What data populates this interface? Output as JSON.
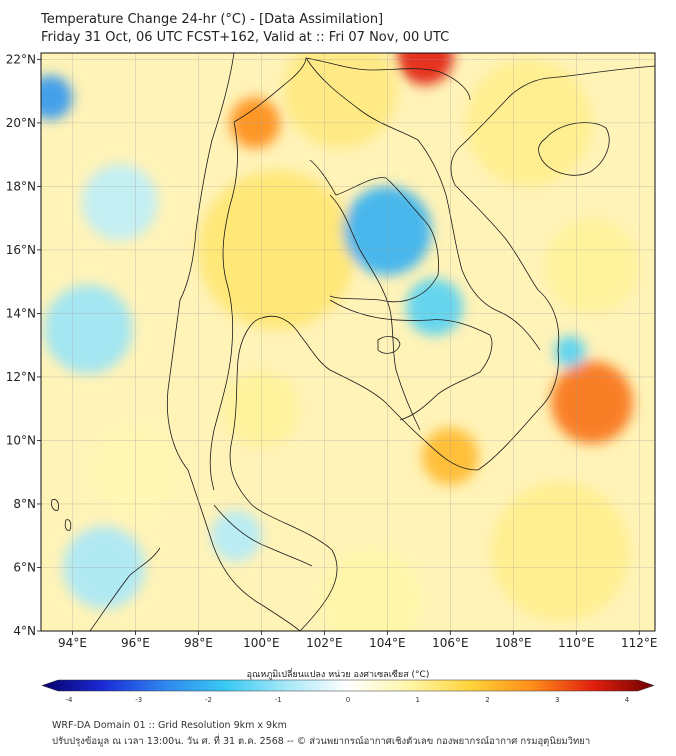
{
  "header": {
    "title": "Temperature Change 24-hr (°C) - [Data Assimilation]",
    "subtitle": "Friday 31 Oct, 06 UTC FCST+162, Valid at :: Fri 07 Nov, 00 UTC"
  },
  "map": {
    "lon_range": [
      93,
      112.5
    ],
    "lat_range": [
      4,
      22.2
    ],
    "lon_ticks": [
      {
        "value": 94,
        "label": "94°E"
      },
      {
        "value": 96,
        "label": "96°E"
      },
      {
        "value": 98,
        "label": "98°E"
      },
      {
        "value": 100,
        "label": "100°E"
      },
      {
        "value": 102,
        "label": "102°E"
      },
      {
        "value": 104,
        "label": "104°E"
      },
      {
        "value": 106,
        "label": "106°E"
      },
      {
        "value": 108,
        "label": "108°E"
      },
      {
        "value": 110,
        "label": "110°E"
      },
      {
        "value": 112,
        "label": "112°E"
      }
    ],
    "lat_ticks": [
      {
        "value": 4,
        "label": "4°N"
      },
      {
        "value": 6,
        "label": "6°N"
      },
      {
        "value": 8,
        "label": "8°N"
      },
      {
        "value": 10,
        "label": "10°N"
      },
      {
        "value": 12,
        "label": "12°N"
      },
      {
        "value": 14,
        "label": "14°N"
      },
      {
        "value": 16,
        "label": "16°N"
      },
      {
        "value": 18,
        "label": "18°N"
      },
      {
        "value": 20,
        "label": "20°N"
      },
      {
        "value": 22,
        "label": "22°N"
      }
    ],
    "grid": true,
    "anomalies": [
      {
        "lon": 105.2,
        "lat": 22.1,
        "value": 3.2,
        "spread": 0.9
      },
      {
        "lon": 99.8,
        "lat": 20.0,
        "value": 2.4,
        "spread": 0.8
      },
      {
        "lon": 110.5,
        "lat": 11.2,
        "value": 2.6,
        "spread": 1.3
      },
      {
        "lon": 106.0,
        "lat": 9.5,
        "value": 1.9,
        "spread": 0.9
      },
      {
        "lon": 100.5,
        "lat": 16.0,
        "value": 1.2,
        "spread": 2.5
      },
      {
        "lon": 102.5,
        "lat": 21.0,
        "value": 1.1,
        "spread": 1.8
      },
      {
        "lon": 108.5,
        "lat": 20.0,
        "value": 1.0,
        "spread": 2.0
      },
      {
        "lon": 110.5,
        "lat": 15.5,
        "value": 0.9,
        "spread": 1.5
      },
      {
        "lon": 109.5,
        "lat": 6.5,
        "value": 1.0,
        "spread": 2.2
      },
      {
        "lon": 103.5,
        "lat": 5.0,
        "value": 0.8,
        "spread": 1.6
      },
      {
        "lon": 96.0,
        "lat": 9.0,
        "value": 0.7,
        "spread": 1.4
      },
      {
        "lon": 100.0,
        "lat": 11.0,
        "value": 0.9,
        "spread": 1.2
      },
      {
        "lon": 104.0,
        "lat": 16.6,
        "value": -1.9,
        "spread": 1.4
      },
      {
        "lon": 105.5,
        "lat": 14.2,
        "value": -1.4,
        "spread": 0.9
      },
      {
        "lon": 93.3,
        "lat": 20.8,
        "value": -2.2,
        "spread": 0.7
      },
      {
        "lon": 109.8,
        "lat": 12.8,
        "value": -1.4,
        "spread": 0.5
      },
      {
        "lon": 94.5,
        "lat": 13.5,
        "value": -0.9,
        "spread": 1.4
      },
      {
        "lon": 95.0,
        "lat": 6.0,
        "value": -0.8,
        "spread": 1.3
      },
      {
        "lon": 99.2,
        "lat": 7.0,
        "value": -0.7,
        "spread": 0.8
      },
      {
        "lon": 95.5,
        "lat": 17.5,
        "value": -0.6,
        "spread": 1.2
      }
    ]
  },
  "colorbar": {
    "label": "อุณหภูมิเปลี่ยนแปลง หน่วย องศาเซลเซียส (°C)",
    "min": -4,
    "max": 4,
    "ticks": [
      "-4",
      "-3",
      "-2",
      "-1",
      "0",
      "1",
      "2",
      "3",
      "4"
    ],
    "colors": [
      "#08006a",
      "#1a2bd6",
      "#2f86ef",
      "#39c9f3",
      "#a8e8f8",
      "#ffffff",
      "#fff6a8",
      "#ffd43a",
      "#ff8d1a",
      "#e2200e",
      "#6d0000"
    ]
  },
  "footer": {
    "line1": "WRF-DA Domain 01 :: Grid Resolution 9km x 9km",
    "line2": "ปรับปรุงข้อมูล ณ เวลา 13:00น. วัน ศ. ที่ 31 ต.ค. 2568 -- © ส่วนพยากรณ์อากาศเชิงตัวเลข กองพยากรณ์อากาศ กรมอุตุนิยมวิทยา"
  }
}
